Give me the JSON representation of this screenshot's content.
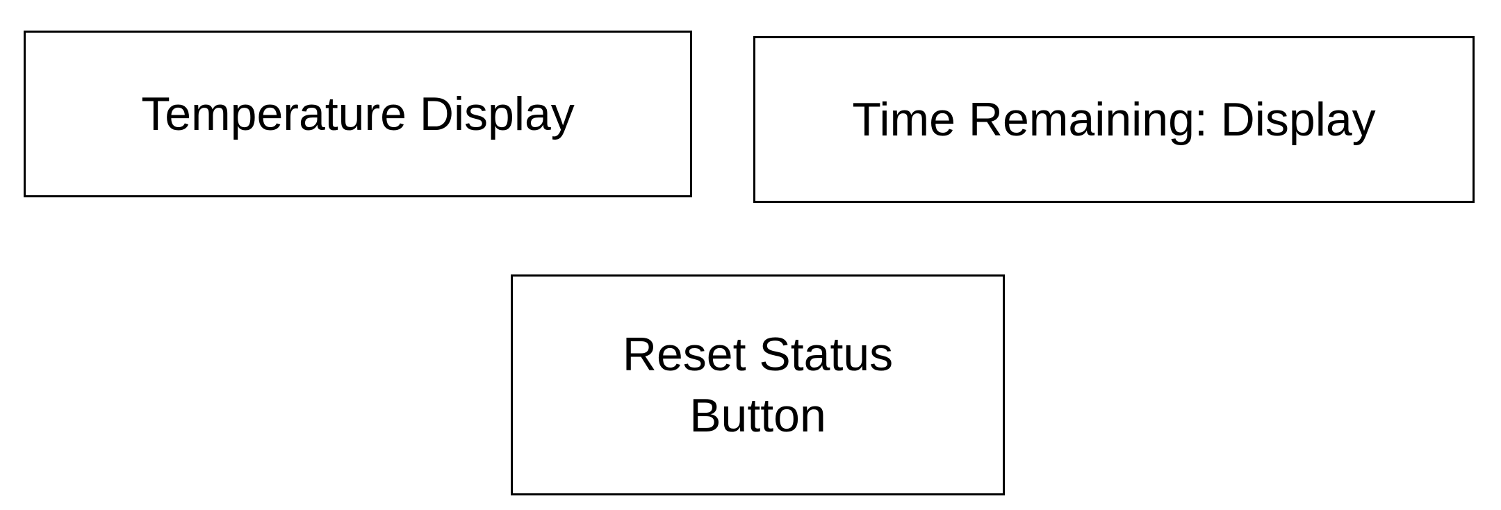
{
  "temperature_display": {
    "label": "Temperature Display"
  },
  "time_remaining_display": {
    "label": "Time Remaining: Display"
  },
  "reset_status_button": {
    "label_line_1": "Reset Status",
    "label_line_2": "Button"
  },
  "colors": {
    "border": "#000000",
    "background": "#ffffff",
    "text": "#000000"
  }
}
